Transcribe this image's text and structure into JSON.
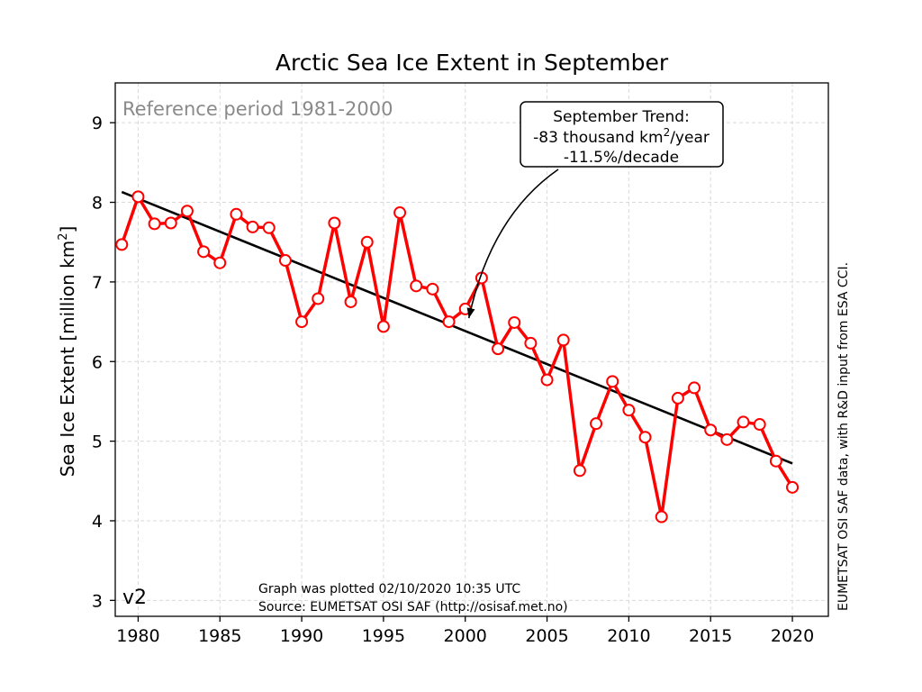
{
  "chart_data": {
    "type": "line",
    "title": "Arctic Sea Ice Extent in September",
    "ylabel_text": "Sea Ice Extent [million km",
    "ylabel_sup": "2",
    "ylabel_close": "]",
    "xlim": [
      1978.6,
      2022.2
    ],
    "ylim": [
      2.8,
      9.5
    ],
    "xticks": [
      1980,
      1985,
      1990,
      1995,
      2000,
      2005,
      2010,
      2015,
      2020
    ],
    "yticks": [
      3,
      4,
      5,
      6,
      7,
      8,
      9
    ],
    "grid": true,
    "series": [
      {
        "color": "#ff0000",
        "x": [
          1979,
          1980,
          1981,
          1982,
          1983,
          1984,
          1985,
          1986,
          1987,
          1988,
          1989,
          1990,
          1991,
          1992,
          1993,
          1994,
          1995,
          1996,
          1997,
          1998,
          1999,
          2000,
          2001,
          2002,
          2003,
          2004,
          2005,
          2006,
          2007,
          2008,
          2009,
          2010,
          2011,
          2012,
          2013,
          2014,
          2015,
          2016,
          2017,
          2018,
          2019,
          2020
        ],
        "values": [
          7.47,
          8.07,
          7.73,
          7.74,
          7.89,
          7.38,
          7.24,
          7.85,
          7.69,
          7.68,
          7.27,
          6.5,
          6.79,
          7.74,
          6.75,
          7.5,
          6.44,
          7.87,
          6.95,
          6.91,
          6.5,
          6.66,
          7.05,
          6.16,
          6.49,
          6.23,
          5.77,
          6.27,
          4.63,
          5.22,
          5.75,
          5.39,
          5.05,
          4.05,
          5.54,
          5.67,
          5.14,
          5.02,
          5.24,
          5.21,
          4.75,
          4.42
        ]
      }
    ],
    "trend": {
      "color": "#000000",
      "x": [
        1979,
        2020
      ],
      "values": [
        8.13,
        4.72
      ]
    },
    "annotation": {
      "lines": [
        "September Trend:",
        "-83 thousand km",
        "/year",
        "-11.5%/decade"
      ],
      "sup": "2",
      "arrow_target_x": 2000,
      "arrow_target_y": 6.5
    },
    "reference_text": "Reference period 1981-2000",
    "version_label": "v2",
    "plot_note_line1": "Graph was plotted 02/10/2020 10:35 UTC",
    "plot_note_line2": "Source: EUMETSAT OSI SAF (http://osisaf.met.no)",
    "side_note": "EUMETSAT OSI SAF data, with R&D input from ESA CCI."
  }
}
